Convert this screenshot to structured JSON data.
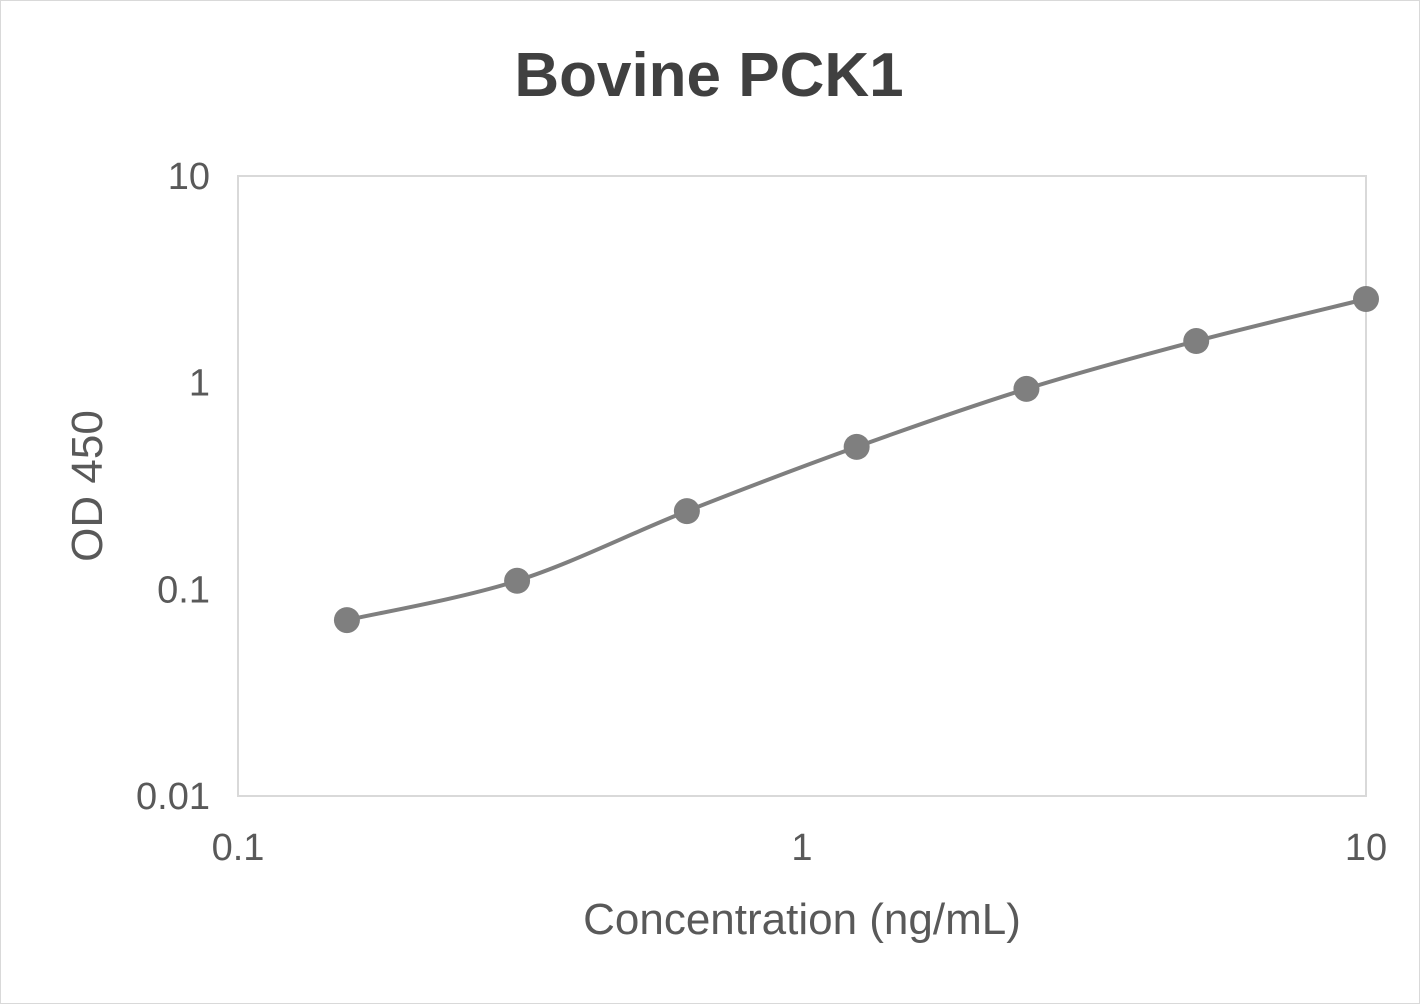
{
  "chart_data": {
    "type": "line",
    "title": "Bovine PCK1",
    "xlabel": "Concentration (ng/mL)",
    "ylabel": "OD 450",
    "x_scale": "log",
    "y_scale": "log",
    "xlim": [
      0.1,
      10
    ],
    "ylim": [
      0.01,
      10
    ],
    "x_ticks": [
      "0.1",
      "1",
      "10"
    ],
    "y_ticks": [
      "0.01",
      "0.1",
      "1",
      "10"
    ],
    "grid": false,
    "legend": "none",
    "smooth": true,
    "series": [
      {
        "color": "#7f7f7f",
        "x": [
          0.156,
          0.3125,
          0.625,
          1.25,
          2.5,
          5,
          10
        ],
        "y": [
          0.071,
          0.11,
          0.239,
          0.489,
          0.933,
          1.59,
          2.54
        ]
      }
    ]
  }
}
